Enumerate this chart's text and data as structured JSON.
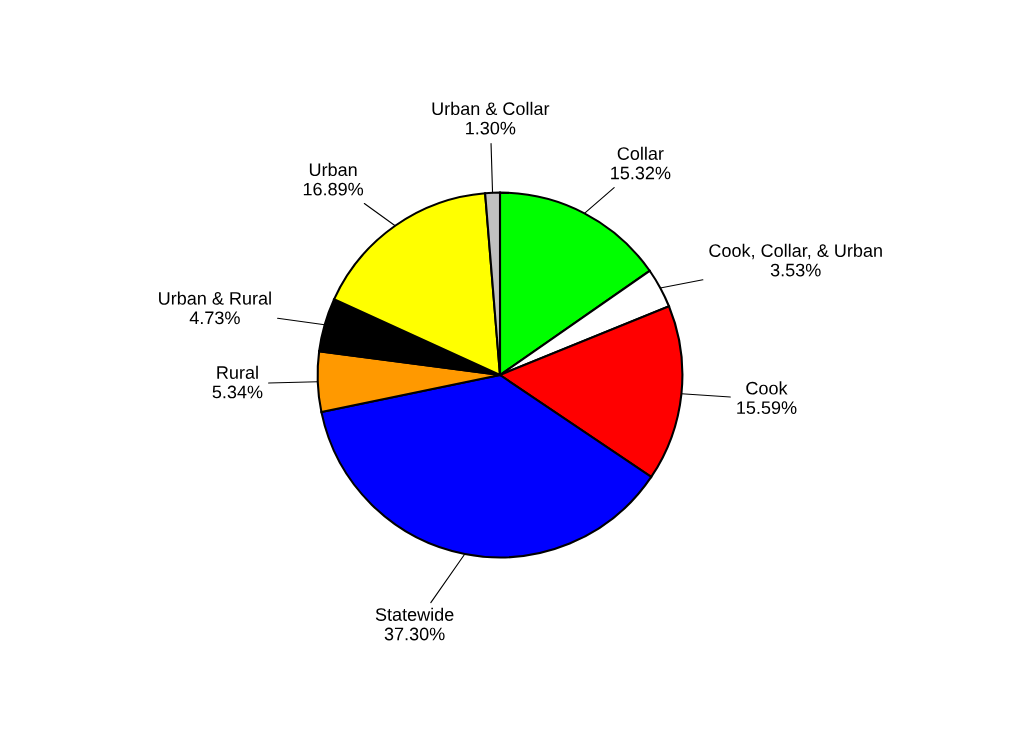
{
  "chart_data": {
    "type": "pie",
    "categories": [
      "Collar",
      "Cook, Collar, & Urban",
      "Cook",
      "Statewide",
      "Rural",
      "Urban & Rural",
      "Urban",
      "Urban & Collar"
    ],
    "values": [
      15.32,
      3.53,
      15.59,
      37.3,
      5.34,
      4.73,
      16.89,
      1.3
    ],
    "colors": [
      "#00ff00",
      "#ffffff",
      "#ff0000",
      "#0000ff",
      "#ff9900",
      "#000000",
      "#ffff00",
      "#c0c0c0"
    ],
    "value_labels": [
      "15.32%",
      "3.53%",
      "15.59%",
      "37.30%",
      "5.34%",
      "4.73%",
      "16.89%",
      "1.30%"
    ]
  }
}
